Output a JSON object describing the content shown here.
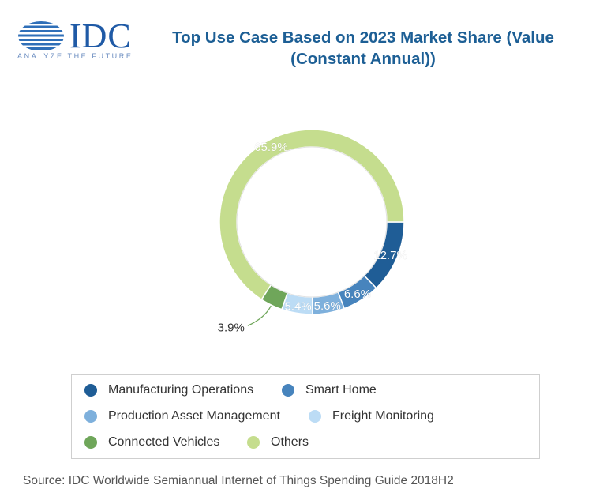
{
  "logo": {
    "text": "IDC",
    "tagline": "ANALYZE THE FUTURE",
    "color": "#1f5aa6"
  },
  "chart_data": {
    "type": "pie",
    "variant": "donut",
    "title": "Top Use Case Based on 2023 Market Share (Value (Constant Annual))",
    "title_lines": [
      "Top Use Case Based on 2023 Market Share (Value",
      "(Constant Annual))"
    ],
    "unit": "%",
    "slices": [
      {
        "name": "Manufacturing Operations",
        "value": 12.7,
        "label": "12.7%",
        "color": "#1f5d96"
      },
      {
        "name": "Smart Home",
        "value": 6.6,
        "label": "6.6%",
        "color": "#4784bd"
      },
      {
        "name": "Production Asset Management",
        "value": 5.6,
        "label": "5.6%",
        "color": "#7eb0dc"
      },
      {
        "name": "Freight Monitoring",
        "value": 5.4,
        "label": "5.4%",
        "color": "#bcdcf5"
      },
      {
        "name": "Connected Vehicles",
        "value": 3.9,
        "label": "3.9%",
        "color": "#6fa65a"
      },
      {
        "name": "Others",
        "value": 65.9,
        "label": "65.9%",
        "color": "#c5dd8e"
      }
    ],
    "legend_position": "bottom"
  },
  "source": "Source: IDC Worldwide Semiannual Internet of Things Spending Guide 2018H2"
}
